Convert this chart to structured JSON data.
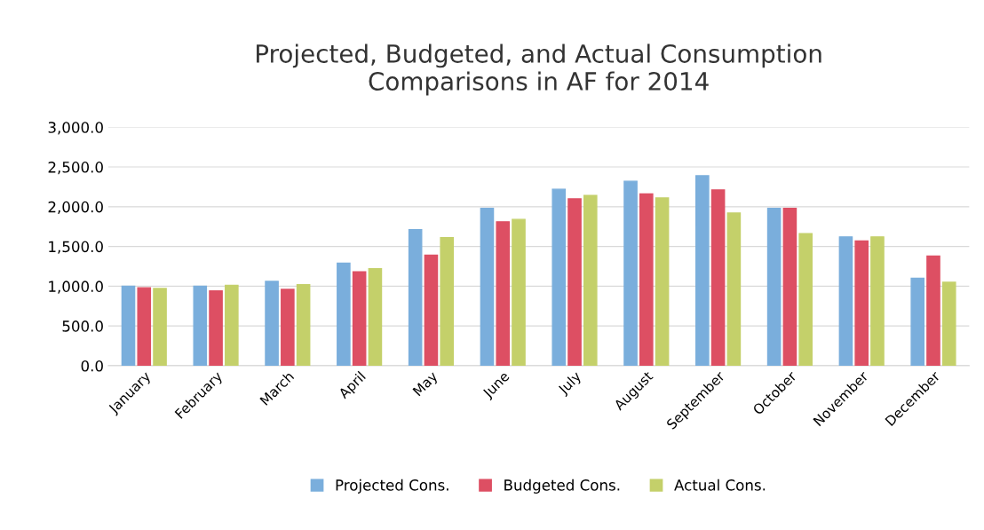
{
  "chart_data": {
    "type": "bar",
    "title": "Projected, Budgeted, and Actual Consumption\nComparisons in AF for 2014",
    "categories": [
      "January",
      "February",
      "March",
      "April",
      "May",
      "June",
      "July",
      "August",
      "September",
      "October",
      "November",
      "December"
    ],
    "series": [
      {
        "name": "Projected Cons.",
        "color": "#7aaedc",
        "values": [
          1000,
          1000,
          1060,
          1290,
          1710,
          1980,
          2220,
          2320,
          2390,
          1980,
          1620,
          1100
        ]
      },
      {
        "name": "Budgeted Cons.",
        "color": "#dd4f63",
        "values": [
          980,
          940,
          960,
          1180,
          1390,
          1810,
          2100,
          2160,
          2210,
          1980,
          1570,
          1380
        ]
      },
      {
        "name": "Actual Cons.",
        "color": "#c4d06a",
        "values": [
          970,
          1010,
          1020,
          1220,
          1610,
          1840,
          2140,
          2110,
          1920,
          1660,
          1620,
          1050
        ]
      }
    ],
    "ylim": [
      0,
      3000
    ],
    "yticks": [
      {
        "value": 0,
        "label": "0.0"
      },
      {
        "value": 500,
        "label": "500.0"
      },
      {
        "value": 1000,
        "label": "1,000.0"
      },
      {
        "value": 1500,
        "label": "1,500.0"
      },
      {
        "value": 2000,
        "label": "2,000.0"
      },
      {
        "value": 2500,
        "label": "2,500.0"
      },
      {
        "value": 3000,
        "label": "3,000.0"
      }
    ],
    "grid": "y",
    "legend": "bottom"
  }
}
